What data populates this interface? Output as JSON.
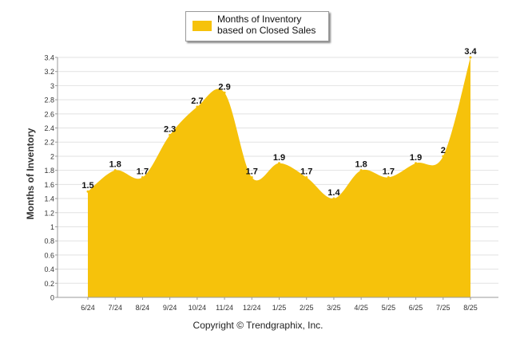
{
  "legend": {
    "label": "Months of Inventory based on Closed Sales"
  },
  "footer": {
    "copyright": "Copyright © Trendgraphix, Inc."
  },
  "colors": {
    "area": "#f6c20b",
    "grid": "#e2e2e2",
    "axis": "#9a9a9a"
  },
  "chart_data": {
    "type": "area",
    "title": "",
    "xlabel": "",
    "ylabel": "Months of Inventory",
    "categories": [
      "6/24",
      "7/24",
      "8/24",
      "9/24",
      "10/24",
      "11/24",
      "12/24",
      "1/25",
      "2/25",
      "3/25",
      "4/25",
      "5/25",
      "6/25",
      "7/25",
      "8/25"
    ],
    "series": [
      {
        "name": "Months of Inventory based on Closed Sales",
        "values": [
          1.5,
          1.8,
          1.7,
          2.3,
          2.7,
          2.9,
          1.7,
          1.9,
          1.7,
          1.4,
          1.8,
          1.7,
          1.9,
          2,
          3.4
        ]
      }
    ],
    "data_labels": [
      "1.5",
      "1.8",
      "1.7",
      "2.3",
      "2.7",
      "2.9",
      "1.7",
      "1.9",
      "1.7",
      "1.4",
      "1.8",
      "1.7",
      "1.9",
      "2",
      "3.4"
    ],
    "ylim": [
      0,
      3.4
    ],
    "yticks": [
      "0",
      "0.2",
      "0.4",
      "0.6",
      "0.8",
      "1",
      "1.2",
      "1.4",
      "1.6",
      "1.8",
      "2",
      "2.2",
      "2.4",
      "2.6",
      "2.8",
      "3",
      "3.2",
      "3.4"
    ],
    "grid": true,
    "legend_position": "top"
  }
}
